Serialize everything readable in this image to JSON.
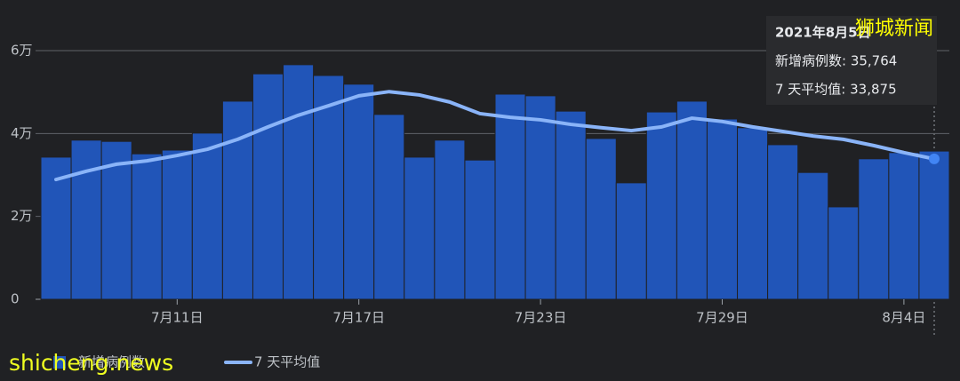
{
  "chart_data": {
    "type": "bar-line",
    "categories": [
      null,
      null,
      null,
      null,
      "7月11日",
      null,
      null,
      null,
      null,
      null,
      "7月17日",
      null,
      null,
      null,
      null,
      null,
      "7月23日",
      null,
      null,
      null,
      null,
      null,
      "7月29日",
      null,
      null,
      null,
      null,
      null,
      "8月4日",
      null
    ],
    "series": [
      {
        "name": "新增病例数",
        "type": "bar",
        "color": "#2155b8",
        "values": [
          34300,
          38400,
          38100,
          35100,
          36000,
          40100,
          47800,
          54400,
          56600,
          54000,
          51900,
          44600,
          34300,
          38400,
          33600,
          49500,
          49100,
          45400,
          38800,
          28100,
          45200,
          47800,
          43500,
          41400,
          37300,
          30600,
          22300,
          33900,
          35400,
          35764
        ]
      },
      {
        "name": "7 天平均值",
        "type": "line",
        "color": "#8ab4f8",
        "values": [
          28900,
          30900,
          32600,
          33400,
          34700,
          36200,
          38600,
          41600,
          44400,
          46700,
          49100,
          50100,
          49300,
          47600,
          44800,
          43900,
          43300,
          42200,
          41400,
          40700,
          41600,
          43700,
          42900,
          41600,
          40500,
          39400,
          38600,
          37100,
          35400,
          33875
        ]
      }
    ],
    "ylim": [
      0,
      60000
    ],
    "yticks": [
      {
        "value": 0,
        "label": "0"
      },
      {
        "value": 20000,
        "label": "2万"
      },
      {
        "value": 40000,
        "label": "4万"
      },
      {
        "value": 60000,
        "label": "6万"
      }
    ],
    "grid": true,
    "tooltip": {
      "title": "2021年8月5日",
      "lines": [
        "新增病例数: 35,764",
        "7 天平均值: 33,875"
      ]
    },
    "watermarks": [
      "狮城新闻",
      "shicheng.news"
    ]
  }
}
